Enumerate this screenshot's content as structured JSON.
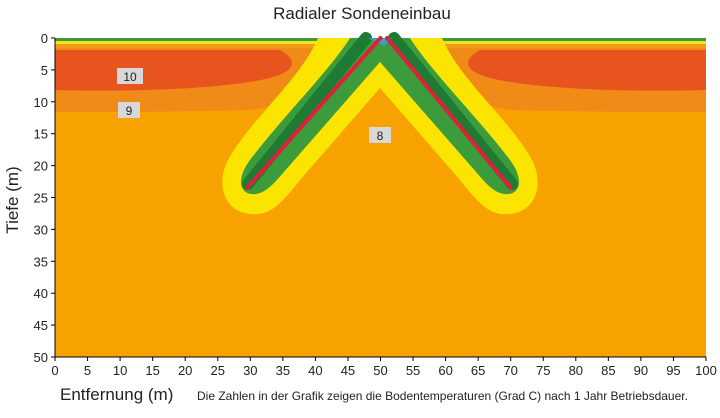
{
  "chart_data": {
    "type": "contour",
    "title": "Radialer Sondeneinbau",
    "x_label": "Entfernung (m)",
    "y_label": "Tiefe (m)",
    "note": "Die Zahlen in der Grafik zeigen die Bodentemperaturen (Grad C) nach 1 Jahr Betriebsdauer.",
    "xlim": [
      0,
      100
    ],
    "xticks": [
      0,
      5,
      10,
      15,
      20,
      25,
      30,
      35,
      40,
      45,
      50,
      55,
      60,
      65,
      70,
      75,
      80,
      85,
      90,
      95,
      100
    ],
    "ylim": [
      0,
      50
    ],
    "yticks": [
      0,
      5,
      10,
      15,
      20,
      25,
      30,
      35,
      40,
      45,
      50
    ],
    "y_inverted": true,
    "contour_labels": [
      "10",
      "9",
      "8"
    ],
    "probe_color": "#e0203a",
    "probes": [
      {
        "x": [
          50,
          29.5
        ],
        "y": [
          0,
          23.5
        ]
      },
      {
        "x": [
          51,
          70
        ],
        "y": [
          0,
          23.5
        ]
      }
    ]
  }
}
